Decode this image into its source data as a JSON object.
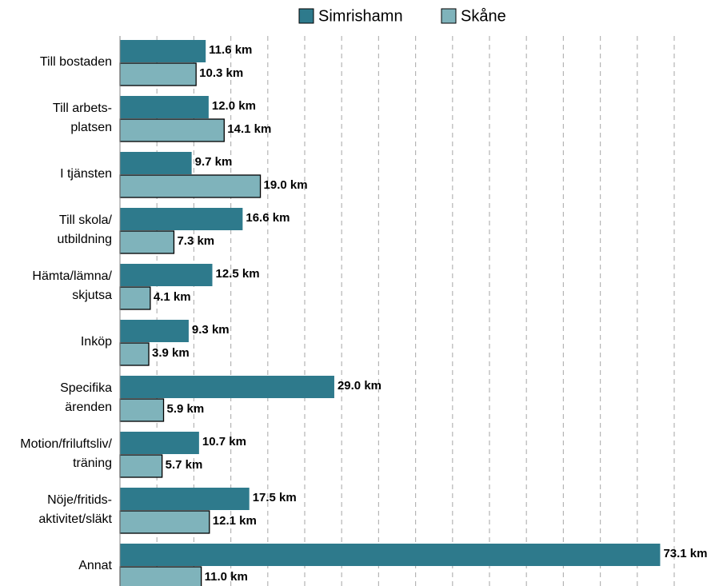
{
  "chart_data": {
    "type": "barh",
    "categories": [
      "Till bostaden",
      "Till arbets-\nplatsen",
      "I tjänsten",
      "Till skola/\nutbildning",
      "Hämta/lämna/\nskjutsa",
      "Inköp",
      "Specifika\närenden",
      "Motion/friluftsliv/\nträning",
      "Nöje/fritids-\naktivitet/släkt",
      "Annat"
    ],
    "series": [
      {
        "name": "Simrishamn",
        "color": "#2e7a8c",
        "values": [
          11.6,
          12.0,
          9.7,
          16.6,
          12.5,
          9.3,
          29.0,
          10.7,
          17.5,
          73.1
        ],
        "value_labels": [
          "11.6 km",
          "12.0 km",
          "9.7 km",
          "16.6 km",
          "12.5 km",
          "9.3 km",
          "29.0 km",
          "10.7 km",
          "17.5 km",
          "73.1 km"
        ]
      },
      {
        "name": "Skåne",
        "color": "#7fb3bb",
        "values": [
          10.3,
          14.1,
          19.0,
          7.3,
          4.1,
          3.9,
          5.9,
          5.7,
          12.1,
          11.0
        ],
        "value_labels": [
          "10.3 km",
          "14.1 km",
          "19.0 km",
          "7.3 km",
          "4.1 km",
          "3.9 km",
          "5.9 km",
          "5.7 km",
          "12.1 km",
          "11.0 km"
        ]
      }
    ],
    "xlim": [
      0,
      75
    ],
    "xticks": [
      0,
      5,
      10,
      15,
      20,
      25,
      30,
      35,
      40,
      45,
      50,
      55,
      60,
      65,
      70,
      75
    ],
    "grid": true,
    "legend": "top"
  }
}
